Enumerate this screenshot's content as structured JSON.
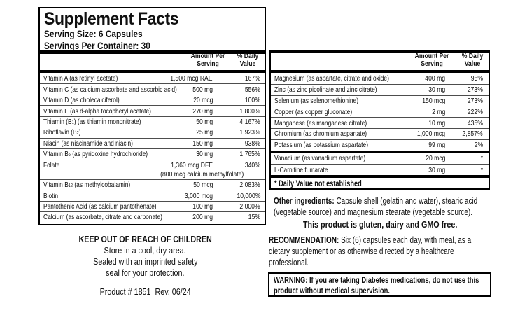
{
  "colors": {
    "background": "#ffffff",
    "text": "#101010",
    "rule_thin": "#4d4d4d",
    "rule_thick": "#000000",
    "border": "#000000"
  },
  "facts_panel": {
    "title": "Supplement Facts",
    "serving_size": "Serving Size: 6 Capsules",
    "servings_per_container": "Servings Per Container: 30"
  },
  "table_headers": {
    "amount_lines": [
      "Amount Per",
      "Serving"
    ],
    "dv_lines": [
      "% Daily",
      "Value"
    ]
  },
  "vitamins_table": {
    "rows": [
      {
        "name": "Vitamin A (as retinyl acetate)",
        "amount": "1,500 mcg RAE",
        "dv": "167%"
      },
      {
        "name": "Vitamin C (as calcium ascorbate and ascorbic acid)",
        "amount": "500 mg",
        "dv": "556%"
      },
      {
        "name": "Vitamin D (as cholecalciferol)",
        "amount": "20 mcg",
        "dv": "100%"
      },
      {
        "name": "Vitamin E (as d-alpha tocopheryl acetate)",
        "amount": "270 mg",
        "dv": "1,800%"
      },
      {
        "name": "Thiamin (B1) (as thiamin mononitrate)",
        "amount": "50 mg",
        "dv": "4,167%"
      },
      {
        "name": "Riboflavin (B2)",
        "amount": "25 mg",
        "dv": "1,923%"
      },
      {
        "name": "Niacin (as niacinamide and niacin)",
        "amount": "150 mg",
        "dv": "938%"
      },
      {
        "name": "Vitamin B6 (as pyridoxine hydrochloride)",
        "amount": "30 mg",
        "dv": "1,765%"
      },
      {
        "name": "Folate",
        "amount": "1,360 mcg DFE",
        "dv": "340%",
        "note": "(800 mcg calcium methylfolate)"
      },
      {
        "name": "Vitamin B12 (as methylcobalamin)",
        "amount": "50 mcg",
        "dv": "2,083%"
      },
      {
        "name": "Biotin",
        "amount": "3,000 mcg",
        "dv": "10,000%"
      },
      {
        "name": "Pantothenic Acid (as calcium pantothenate)",
        "amount": "100 mg",
        "dv": "2,000%"
      },
      {
        "name": "Calcium (as ascorbate, citrate and carbonate)",
        "amount": "200 mg",
        "dv": "15%"
      }
    ]
  },
  "minerals_table": {
    "rows": [
      {
        "name": "Magnesium (as aspartate, citrate and oxide)",
        "amount": "400 mg",
        "dv": "95%"
      },
      {
        "name": "Zinc (as zinc picolinate and zinc citrate)",
        "amount": "30 mg",
        "dv": "273%"
      },
      {
        "name": "Selenium (as selenomethionine)",
        "amount": "150 mcg",
        "dv": "273%"
      },
      {
        "name": "Copper (as copper gluconate)",
        "amount": "2 mg",
        "dv": "222%"
      },
      {
        "name": "Manganese (as manganese citrate)",
        "amount": "10 mg",
        "dv": "435%"
      },
      {
        "name": "Chromium (as chromium aspartate)",
        "amount": "1,000 mcg",
        "dv": "2,857%"
      },
      {
        "name": "Potassium (as potassium aspartate)",
        "amount": "99 mg",
        "dv": "2%"
      }
    ],
    "no_dv_rows": [
      {
        "name": "Vanadium (as vanadium aspartate)",
        "amount": "20 mcg",
        "dv": "*"
      },
      {
        "name": "L-Carnitine fumarate",
        "amount": "30 mg",
        "dv": "*"
      }
    ],
    "footnote": "* Daily Value not established"
  },
  "other_ingredients": {
    "label": "Other ingredients:",
    "line1_rest": " Capsule shell (gelatin and water), stearic acid",
    "line2": "(vegetable source) and magnesium stearate (vegetable source)."
  },
  "gluten_statement": "This product is gluten, dairy and GMO free.",
  "recommendation": {
    "label": "RECOMMENDATION:",
    "line1_rest": " Six (6) capsules each day, with meal, as a",
    "lines": [
      "dietary supplement or as otherwise directed by a healthcare",
      "professional."
    ]
  },
  "warning": {
    "lines": [
      "WARNING: If you are taking Diabetes medications, do not use this",
      "product without medical supervision."
    ]
  },
  "keep_out": {
    "title": "KEEP OUT OF REACH OF CHILDREN",
    "lines": [
      "Store in a cool, dry area.",
      "Sealed with an imprinted safety",
      "seal for your protection."
    ]
  },
  "product_line": "Product # 1851  Rev. 06/24"
}
